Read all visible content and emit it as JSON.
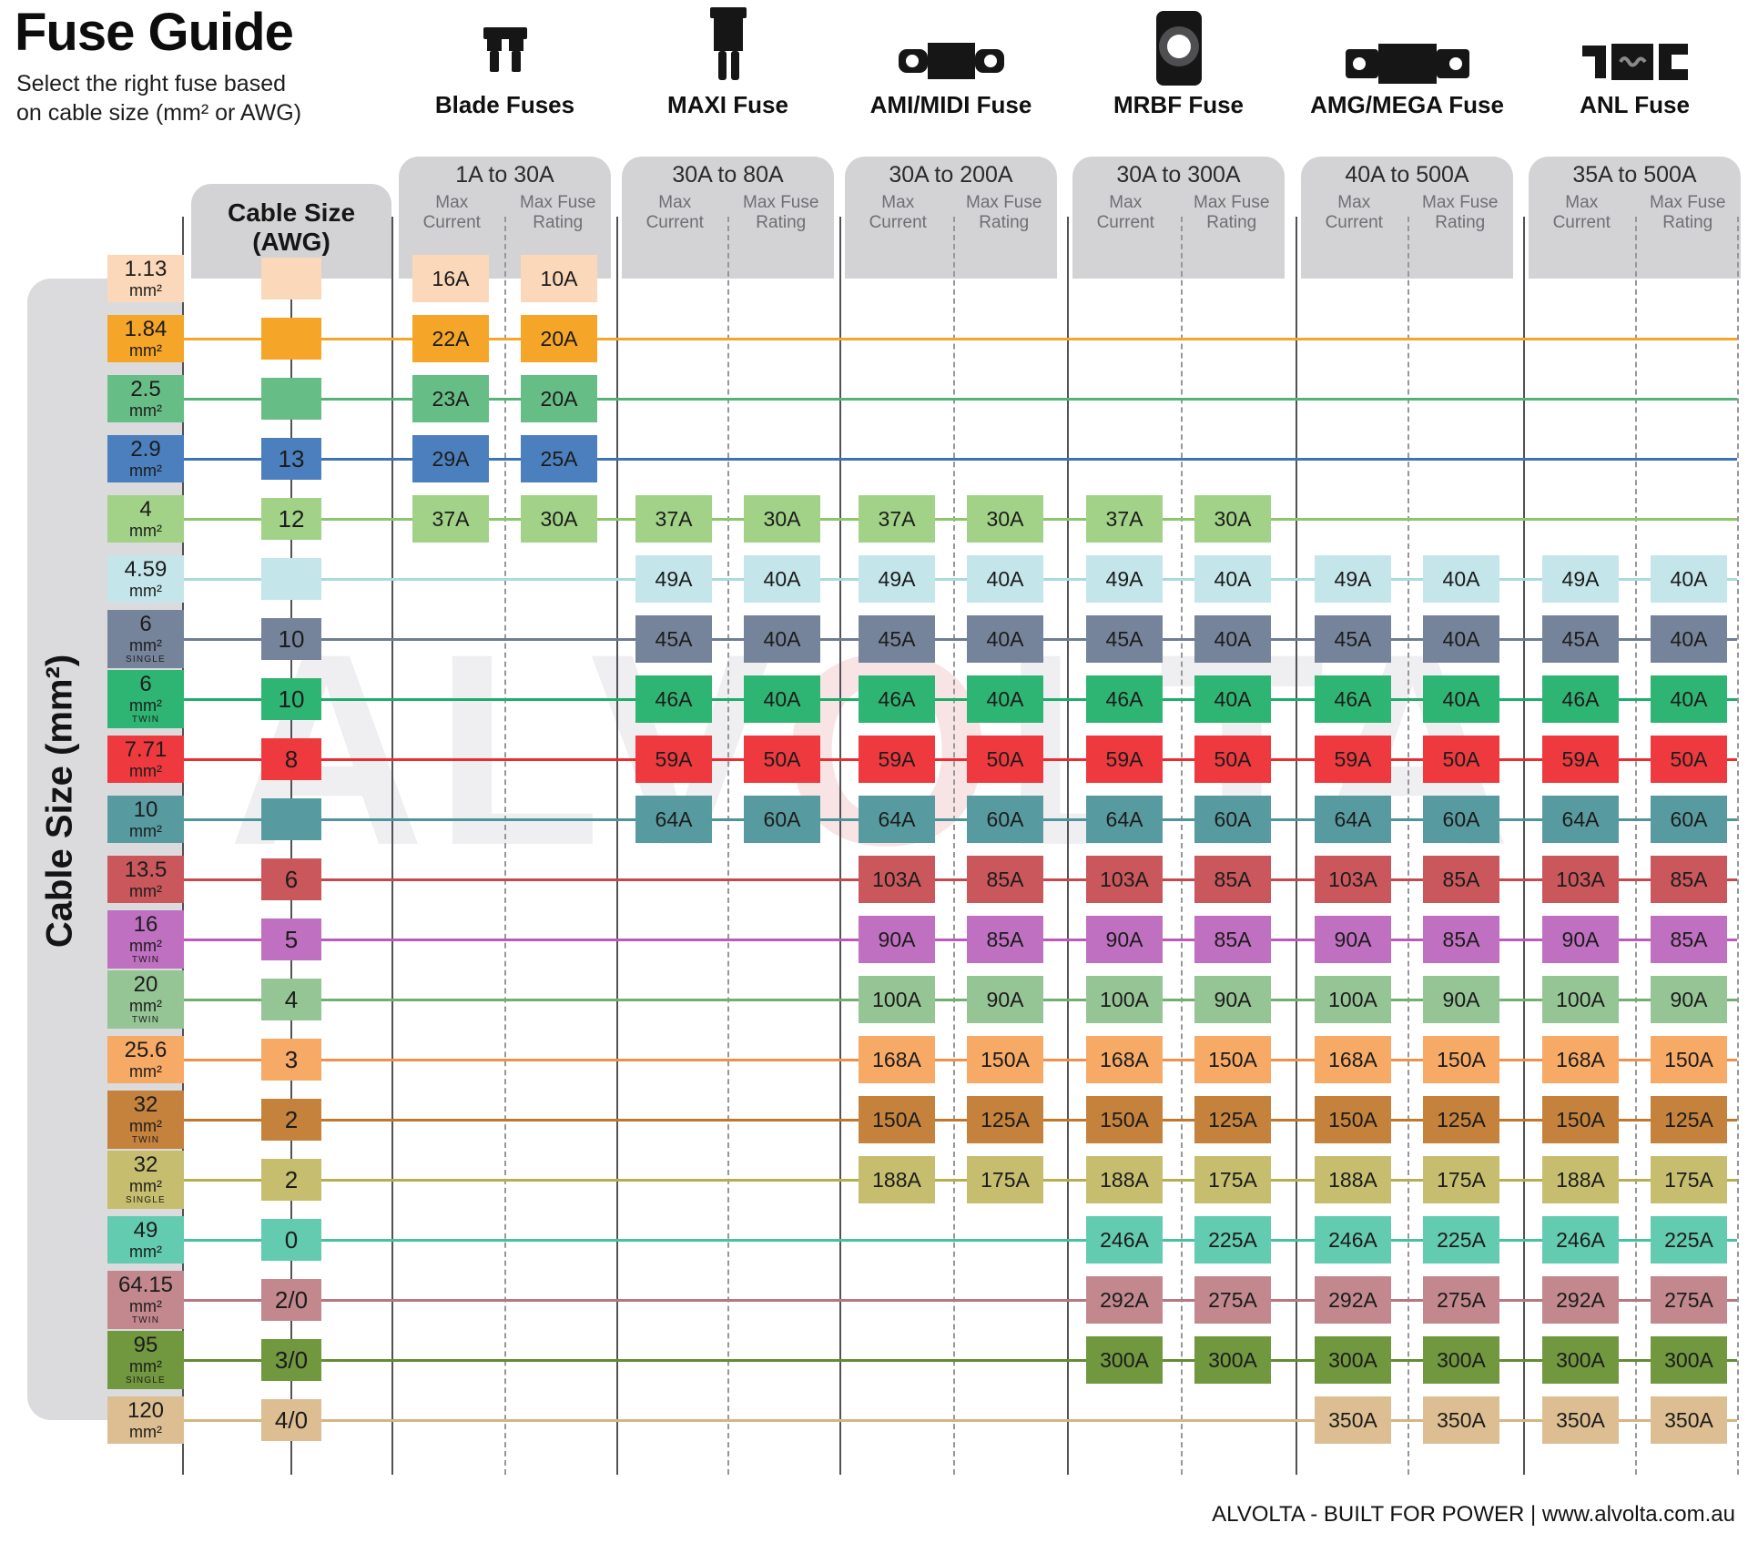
{
  "page": {
    "title": "Fuse Guide",
    "subtitle": [
      "Select the right fuse based",
      "on cable size (mm² or AWG)"
    ],
    "footer": "ALVOLTA - BUILT FOR POWER | www.alvolta.com.au",
    "watermark": {
      "left": "ALV",
      "o": "O",
      "right": "LTA"
    }
  },
  "axis": {
    "mm2_label": "Cable Size (mm²)",
    "awg_title_line1": "Cable Size",
    "awg_title_line2": "(AWG)"
  },
  "column_headers": {
    "current_l1": "Max",
    "current_l2": "Current",
    "rating_l1": "Max Fuse",
    "rating_l2": "Rating"
  },
  "fuse_types": [
    {
      "name": "Blade Fuses",
      "range": "1A to 30A",
      "icon": "blade-fuse-icon"
    },
    {
      "name": "MAXI Fuse",
      "range": "30A to 80A",
      "icon": "maxi-fuse-icon"
    },
    {
      "name": "AMI/MIDI Fuse",
      "range": "30A to 200A",
      "icon": "ami-midi-fuse-icon"
    },
    {
      "name": "MRBF Fuse",
      "range": "30A to 300A",
      "icon": "mrbf-fuse-icon"
    },
    {
      "name": "AMG/MEGA Fuse",
      "range": "40A to 500A",
      "icon": "amg-mega-fuse-icon"
    },
    {
      "name": "ANL Fuse",
      "range": "35A to 500A",
      "icon": "anl-fuse-icon"
    }
  ],
  "chart_data": {
    "type": "table",
    "title": "Fuse Guide",
    "unit": "mm²",
    "row_axis_label": "Cable Size (mm²)",
    "col_axis_label": "Cable Size (AWG)",
    "column_groups": [
      "Blade Fuses",
      "MAXI Fuse",
      "AMI/MIDI Fuse",
      "MRBF Fuse",
      "AMG/MEGA Fuse",
      "ANL Fuse"
    ],
    "subcolumns": [
      "Max Current",
      "Max Fuse Rating"
    ],
    "rows": [
      {
        "size": "1.13",
        "tag": "",
        "awg": "",
        "color": "#FAD8B9",
        "line_color": null,
        "cells": [
          [
            "16A",
            "10A"
          ],
          null,
          null,
          null,
          null,
          null
        ]
      },
      {
        "size": "1.84",
        "tag": "",
        "awg": "",
        "color": "#F5A528",
        "line_color": "#F5A528",
        "cells": [
          [
            "22A",
            "20A"
          ],
          null,
          null,
          null,
          null,
          null
        ]
      },
      {
        "size": "2.5",
        "tag": "",
        "awg": "",
        "color": "#67BD86",
        "line_color": "#54B277",
        "cells": [
          [
            "23A",
            "20A"
          ],
          null,
          null,
          null,
          null,
          null
        ]
      },
      {
        "size": "2.9",
        "tag": "",
        "awg": "13",
        "color": "#4B7FBD",
        "line_color": "#3E74B4",
        "cells": [
          [
            "29A",
            "25A"
          ],
          null,
          null,
          null,
          null,
          null
        ]
      },
      {
        "size": "4",
        "tag": "",
        "awg": "12",
        "color": "#A2D287",
        "line_color": "#8BC86A",
        "cells": [
          [
            "37A",
            "30A"
          ],
          [
            "37A",
            "30A"
          ],
          [
            "37A",
            "30A"
          ],
          [
            "37A",
            "30A"
          ],
          null,
          null
        ]
      },
      {
        "size": "4.59",
        "tag": "",
        "awg": "",
        "color": "#C4E6EB",
        "line_color": "#A6DBE1",
        "cells": [
          null,
          [
            "49A",
            "40A"
          ],
          [
            "49A",
            "40A"
          ],
          [
            "49A",
            "40A"
          ],
          [
            "49A",
            "40A"
          ],
          [
            "49A",
            "40A"
          ]
        ]
      },
      {
        "size": "6",
        "tag": "SINGLE",
        "awg": "10",
        "color": "#76849B",
        "line_color": "#6E7D95",
        "cells": [
          null,
          [
            "45A",
            "40A"
          ],
          [
            "45A",
            "40A"
          ],
          [
            "45A",
            "40A"
          ],
          [
            "45A",
            "40A"
          ],
          [
            "45A",
            "40A"
          ]
        ]
      },
      {
        "size": "6",
        "tag": "TWIN",
        "awg": "10",
        "color": "#2FB573",
        "line_color": "#1FAD68",
        "cells": [
          null,
          [
            "46A",
            "40A"
          ],
          [
            "46A",
            "40A"
          ],
          [
            "46A",
            "40A"
          ],
          [
            "46A",
            "40A"
          ],
          [
            "46A",
            "40A"
          ]
        ]
      },
      {
        "size": "7.71",
        "tag": "",
        "awg": "8",
        "color": "#EE3A3E",
        "line_color": "#ED2B31",
        "cells": [
          null,
          [
            "59A",
            "50A"
          ],
          [
            "59A",
            "50A"
          ],
          [
            "59A",
            "50A"
          ],
          [
            "59A",
            "50A"
          ],
          [
            "59A",
            "50A"
          ]
        ]
      },
      {
        "size": "10",
        "tag": "",
        "awg": "",
        "color": "#579BA1",
        "line_color": "#4E949A",
        "cells": [
          null,
          [
            "64A",
            "60A"
          ],
          [
            "64A",
            "60A"
          ],
          [
            "64A",
            "60A"
          ],
          [
            "64A",
            "60A"
          ],
          [
            "64A",
            "60A"
          ]
        ]
      },
      {
        "size": "13.5",
        "tag": "",
        "awg": "6",
        "color": "#C9575C",
        "line_color": "#C44A50",
        "cells": [
          null,
          null,
          [
            "103A",
            "85A"
          ],
          [
            "103A",
            "85A"
          ],
          [
            "103A",
            "85A"
          ],
          [
            "103A",
            "85A"
          ]
        ]
      },
      {
        "size": "16",
        "tag": "TWIN",
        "awg": "5",
        "color": "#BF70C1",
        "line_color": "#BC5ABB",
        "cells": [
          null,
          null,
          [
            "90A",
            "85A"
          ],
          [
            "90A",
            "85A"
          ],
          [
            "90A",
            "85A"
          ],
          [
            "90A",
            "85A"
          ]
        ]
      },
      {
        "size": "20",
        "tag": "TWIN",
        "awg": "4",
        "color": "#95C495",
        "line_color": "#6FB26F",
        "cells": [
          null,
          null,
          [
            "100A",
            "90A"
          ],
          [
            "100A",
            "90A"
          ],
          [
            "100A",
            "90A"
          ],
          [
            "100A",
            "90A"
          ]
        ]
      },
      {
        "size": "25.6",
        "tag": "",
        "awg": "3",
        "color": "#F7A966",
        "line_color": "#F29049",
        "cells": [
          null,
          null,
          [
            "168A",
            "150A"
          ],
          [
            "168A",
            "150A"
          ],
          [
            "168A",
            "150A"
          ],
          [
            "168A",
            "150A"
          ]
        ]
      },
      {
        "size": "32",
        "tag": "TWIN",
        "awg": "2",
        "color": "#C5823D",
        "line_color": "#C0762B",
        "cells": [
          null,
          null,
          [
            "150A",
            "125A"
          ],
          [
            "150A",
            "125A"
          ],
          [
            "150A",
            "125A"
          ],
          [
            "150A",
            "125A"
          ]
        ]
      },
      {
        "size": "32",
        "tag": "SINGLE",
        "awg": "2",
        "color": "#C6BE6E",
        "line_color": "#B7AE52",
        "cells": [
          null,
          null,
          [
            "188A",
            "175A"
          ],
          [
            "188A",
            "175A"
          ],
          [
            "188A",
            "175A"
          ],
          [
            "188A",
            "175A"
          ]
        ]
      },
      {
        "size": "49",
        "tag": "",
        "awg": "0",
        "color": "#63CBB0",
        "line_color": "#45C2A2",
        "cells": [
          null,
          null,
          null,
          [
            "246A",
            "225A"
          ],
          [
            "246A",
            "225A"
          ],
          [
            "246A",
            "225A"
          ]
        ]
      },
      {
        "size": "64.15",
        "tag": "TWIN",
        "awg": "2/0",
        "color": "#C2888E",
        "line_color": "#B7777E",
        "cells": [
          null,
          null,
          null,
          [
            "292A",
            "275A"
          ],
          [
            "292A",
            "275A"
          ],
          [
            "292A",
            "275A"
          ]
        ]
      },
      {
        "size": "95",
        "tag": "SINGLE",
        "awg": "3/0",
        "color": "#71973F",
        "line_color": "#648C32",
        "cells": [
          null,
          null,
          null,
          [
            "300A",
            "300A"
          ],
          [
            "300A",
            "300A"
          ],
          [
            "300A",
            "300A"
          ]
        ]
      },
      {
        "size": "120",
        "tag": "",
        "awg": "4/0",
        "color": "#DDBE92",
        "line_color": "#D7B480",
        "cells": [
          null,
          null,
          null,
          null,
          [
            "350A",
            "350A"
          ],
          [
            "350A",
            "350A"
          ]
        ]
      }
    ]
  }
}
